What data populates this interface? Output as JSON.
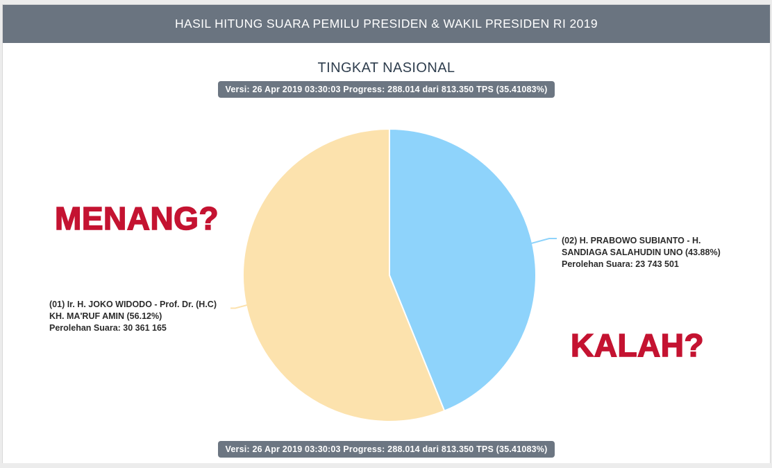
{
  "header": {
    "title": "HASIL HITUNG SUARA PEMILU PRESIDEN & WAKIL PRESIDEN RI 2019"
  },
  "page": {
    "subtitle": "TINGKAT NASIONAL"
  },
  "version_bar": {
    "text": "Versi: 26 Apr 2019 03:30:03 Progress: 288.014 dari 813.350 TPS (35.41083%)"
  },
  "annotations": {
    "left_word": "MENANG?",
    "right_word": "KALAH?",
    "color": "#c41331"
  },
  "candidate_labels": {
    "left": {
      "lines": [
        "(01) Ir. H. JOKO WIDODO - Prof. Dr. (H.C)",
        "KH. MA'RUF AMIN (56.12%)",
        "Perolehan Suara: 30 361 165"
      ]
    },
    "right": {
      "lines": [
        "(02) H. PRABOWO SUBIANTO - H.",
        "SANDIAGA SALAHUDIN UNO (43.88%)",
        "Perolehan Suara: 23 743 501"
      ]
    }
  },
  "chart_data": {
    "type": "pie",
    "title": "TINGKAT NASIONAL",
    "slices": [
      {
        "id": "01",
        "name": "(01) Ir. H. JOKO WIDODO - Prof. Dr. (H.C) KH. MA'RUF AMIN",
        "percent": 56.12,
        "votes": 30361165,
        "votes_display": "30 361 165",
        "color": "#fce2ad"
      },
      {
        "id": "02",
        "name": "(02) H. PRABOWO SUBIANTO - H. SANDIAGA SALAHUDIN UNO",
        "percent": 43.88,
        "votes": 23743501,
        "votes_display": "23 743 501",
        "color": "#8ed3fb"
      }
    ],
    "layout": {
      "start_angle_deg": 0,
      "clockwise": true,
      "first_drawn_slice": "02",
      "slice_border_color": "#ffffff",
      "legend": "off"
    }
  }
}
